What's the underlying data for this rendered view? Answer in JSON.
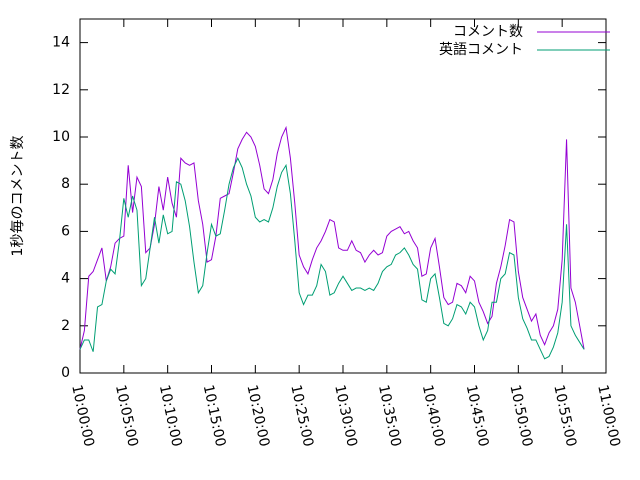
{
  "chart_data": {
    "type": "line",
    "ylabel": "1秒毎のコメント数",
    "ylim": [
      0,
      15
    ],
    "yticks": [
      0,
      2,
      4,
      6,
      8,
      10,
      12,
      14
    ],
    "xlim": [
      "10:00:00",
      "11:00:00"
    ],
    "xticks": [
      "10:00:00",
      "10:05:00",
      "10:10:00",
      "10:15:00",
      "10:20:00",
      "10:25:00",
      "10:30:00",
      "10:35:00",
      "10:40:00",
      "10:45:00",
      "10:50:00",
      "10:55:00",
      "11:00:00"
    ],
    "legend": "top-right",
    "x": [
      "10:00:00",
      "10:00:30",
      "10:01:00",
      "10:01:30",
      "10:02:00",
      "10:02:30",
      "10:03:00",
      "10:03:30",
      "10:04:00",
      "10:04:30",
      "10:05:00",
      "10:05:30",
      "10:06:00",
      "10:06:30",
      "10:07:00",
      "10:07:30",
      "10:08:00",
      "10:08:30",
      "10:09:00",
      "10:09:30",
      "10:10:00",
      "10:10:30",
      "10:11:00",
      "10:11:30",
      "10:12:00",
      "10:12:30",
      "10:13:00",
      "10:13:30",
      "10:14:00",
      "10:14:30",
      "10:15:00",
      "10:15:30",
      "10:16:00",
      "10:16:30",
      "10:17:00",
      "10:17:30",
      "10:18:00",
      "10:18:30",
      "10:19:00",
      "10:19:30",
      "10:20:00",
      "10:20:30",
      "10:21:00",
      "10:21:30",
      "10:22:00",
      "10:22:30",
      "10:23:00",
      "10:23:30",
      "10:24:00",
      "10:24:30",
      "10:25:00",
      "10:25:30",
      "10:26:00",
      "10:26:30",
      "10:27:00",
      "10:27:30",
      "10:28:00",
      "10:28:30",
      "10:29:00",
      "10:29:30",
      "10:30:00",
      "10:30:30",
      "10:31:00",
      "10:31:30",
      "10:32:00",
      "10:32:30",
      "10:33:00",
      "10:33:30",
      "10:34:00",
      "10:34:30",
      "10:35:00",
      "10:35:30",
      "10:36:00",
      "10:36:30",
      "10:37:00",
      "10:37:30",
      "10:38:00",
      "10:38:30",
      "10:39:00",
      "10:39:30",
      "10:40:00",
      "10:40:30",
      "10:41:00",
      "10:41:30",
      "10:42:00",
      "10:42:30",
      "10:43:00",
      "10:43:30",
      "10:44:00",
      "10:44:30",
      "10:45:00",
      "10:45:30",
      "10:46:00",
      "10:46:30",
      "10:47:00",
      "10:47:30",
      "10:48:00",
      "10:48:30",
      "10:49:00",
      "10:49:30",
      "10:50:00",
      "10:50:30",
      "10:51:00",
      "10:51:30",
      "10:52:00",
      "10:52:30",
      "10:53:00",
      "10:53:30",
      "10:54:00",
      "10:54:30",
      "10:55:00",
      "10:55:30",
      "10:56:00",
      "10:56:30",
      "10:57:00",
      "10:57:30"
    ],
    "series": [
      {
        "name": "コメント数",
        "color": "#9400d3",
        "values": [
          1.0,
          1.8,
          4.1,
          4.3,
          4.8,
          5.3,
          3.9,
          4.5,
          5.5,
          5.7,
          5.8,
          8.8,
          6.8,
          8.3,
          7.9,
          5.1,
          5.3,
          6.3,
          7.9,
          6.9,
          8.3,
          7.2,
          6.6,
          9.1,
          8.9,
          8.8,
          8.9,
          7.3,
          6.3,
          4.7,
          4.8,
          5.8,
          7.4,
          7.5,
          7.6,
          8.5,
          9.5,
          9.9,
          10.2,
          10.0,
          9.6,
          8.8,
          7.8,
          7.6,
          8.2,
          9.3,
          10.0,
          10.4,
          9.1,
          7.2,
          5.0,
          4.5,
          4.2,
          4.8,
          5.3,
          5.6,
          6.0,
          6.5,
          6.4,
          5.3,
          5.2,
          5.2,
          5.6,
          5.2,
          5.1,
          4.7,
          5.0,
          5.2,
          5.0,
          5.1,
          5.8,
          6.0,
          6.1,
          6.2,
          5.9,
          6.0,
          5.6,
          5.3,
          4.1,
          4.2,
          5.3,
          5.7,
          4.5,
          3.2,
          2.9,
          3.0,
          3.8,
          3.7,
          3.4,
          4.1,
          3.9,
          3.0,
          2.6,
          2.1,
          2.4,
          3.8,
          4.5,
          5.4,
          6.5,
          6.4,
          4.3,
          3.2,
          2.7,
          2.2,
          2.5,
          1.6,
          1.2,
          1.7,
          2.0,
          2.7,
          4.8,
          9.9,
          3.6,
          3.0,
          2.0,
          1.0
        ]
      },
      {
        "name": "英語コメント",
        "color": "#009e73",
        "values": [
          1.0,
          1.4,
          1.4,
          0.9,
          2.8,
          2.9,
          3.9,
          4.4,
          4.2,
          5.6,
          7.4,
          6.6,
          7.5,
          6.9,
          3.7,
          4.0,
          5.3,
          6.6,
          5.5,
          6.7,
          5.9,
          6.0,
          8.1,
          8.0,
          7.3,
          6.2,
          4.7,
          3.4,
          3.7,
          5.1,
          6.3,
          5.8,
          5.9,
          6.9,
          8.0,
          8.7,
          9.1,
          8.7,
          8.0,
          7.5,
          6.6,
          6.4,
          6.5,
          6.4,
          7.0,
          7.9,
          8.5,
          8.8,
          7.6,
          5.6,
          3.4,
          2.9,
          3.3,
          3.3,
          3.7,
          4.6,
          4.3,
          3.3,
          3.4,
          3.8,
          4.1,
          3.8,
          3.5,
          3.6,
          3.6,
          3.5,
          3.6,
          3.5,
          3.8,
          4.3,
          4.5,
          4.6,
          5.0,
          5.1,
          5.3,
          5.0,
          4.6,
          4.4,
          3.1,
          3.0,
          4.0,
          4.2,
          3.2,
          2.1,
          2.0,
          2.3,
          2.9,
          2.8,
          2.5,
          3.0,
          2.8,
          2.0,
          1.4,
          1.8,
          3.0,
          3.0,
          4.0,
          4.2,
          5.1,
          5.0,
          3.2,
          2.3,
          1.9,
          1.4,
          1.4,
          1.0,
          0.6,
          0.7,
          1.1,
          1.7,
          3.0,
          6.3,
          2.0,
          1.6,
          1.3,
          1.0
        ]
      }
    ]
  }
}
